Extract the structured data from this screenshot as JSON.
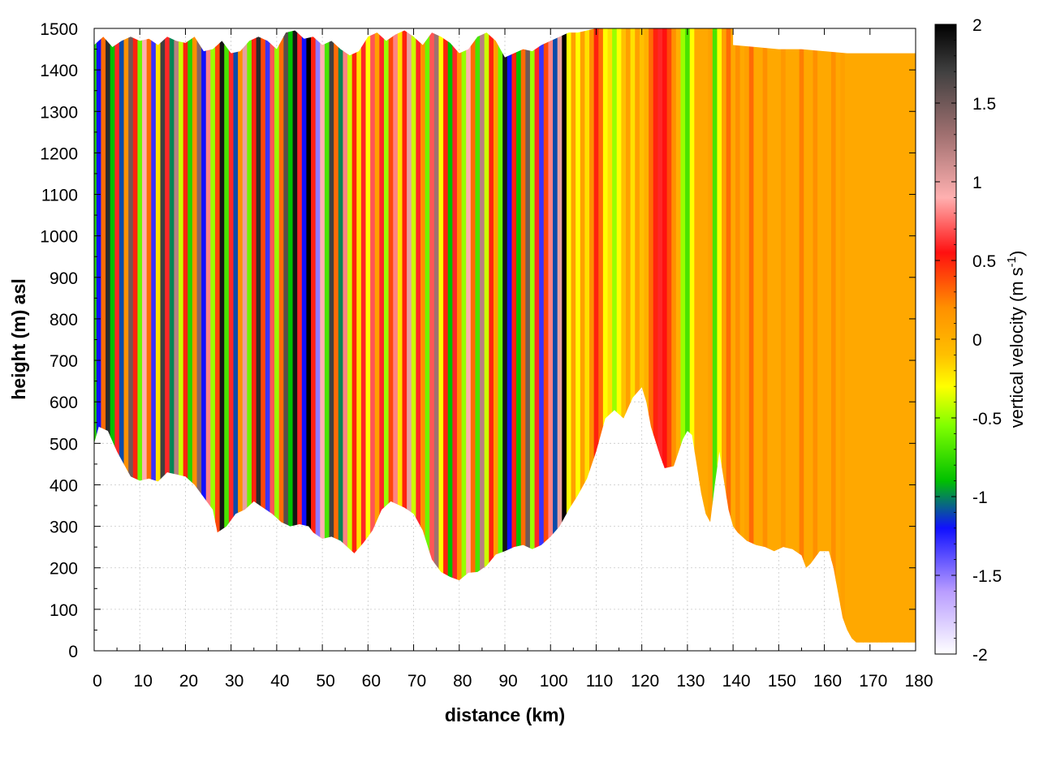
{
  "chart_data": {
    "type": "heatmap",
    "title": "",
    "xlabel": "distance (km)",
    "ylabel": "height (m) asl",
    "xlim": [
      0,
      180
    ],
    "ylim": [
      0,
      1500
    ],
    "x_ticks": [
      0,
      10,
      20,
      30,
      40,
      50,
      60,
      70,
      80,
      90,
      100,
      110,
      120,
      130,
      140,
      150,
      160,
      170,
      180
    ],
    "x_tick_labels": [
      "0",
      "10",
      "20",
      "30",
      "40",
      "50",
      "60",
      "70",
      "80",
      "90",
      "100",
      "110",
      "120",
      "130",
      "140",
      "150",
      "160",
      "170",
      "180"
    ],
    "y_ticks": [
      0,
      100,
      200,
      300,
      400,
      500,
      600,
      700,
      800,
      900,
      1000,
      1100,
      1200,
      1300,
      1400,
      1500
    ],
    "y_tick_labels": [
      "0",
      "100",
      "200",
      "300",
      "400",
      "500",
      "600",
      "700",
      "800",
      "900",
      "1000",
      "1100",
      "1200",
      "1300",
      "1400",
      "1500"
    ],
    "grid": true,
    "colorbar": {
      "label_main": "vertical velocity (m s",
      "label_sup": "-1",
      "label_end": ")",
      "range": [
        -2,
        2
      ],
      "ticks": [
        2,
        1.5,
        1,
        0.5,
        0,
        -0.5,
        -1,
        -1.5,
        -2
      ],
      "tick_labels": [
        "2",
        "1.5",
        "1",
        "0.5",
        "0",
        "-0.5",
        "-1",
        "-1.5",
        "-2"
      ],
      "palette": [
        {
          "v": -2.0,
          "color": "#ffffff"
        },
        {
          "v": -1.6,
          "color": "#b89cff"
        },
        {
          "v": -1.2,
          "color": "#1010ff"
        },
        {
          "v": -0.9,
          "color": "#00c000"
        },
        {
          "v": -0.55,
          "color": "#80ff00"
        },
        {
          "v": -0.3,
          "color": "#ffff00"
        },
        {
          "v": -0.1,
          "color": "#ffc000"
        },
        {
          "v": 0.2,
          "color": "#ff9000"
        },
        {
          "v": 0.55,
          "color": "#ff1010"
        },
        {
          "v": 0.9,
          "color": "#ffb0b0"
        },
        {
          "v": 1.3,
          "color": "#a07070"
        },
        {
          "v": 1.7,
          "color": "#404040"
        },
        {
          "v": 2.0,
          "color": "#000000"
        }
      ]
    },
    "terrain_bottom_m": [
      [
        0,
        500
      ],
      [
        1,
        540
      ],
      [
        3,
        530
      ],
      [
        5,
        480
      ],
      [
        8,
        420
      ],
      [
        10,
        410
      ],
      [
        12,
        415
      ],
      [
        14,
        408
      ],
      [
        16,
        430
      ],
      [
        18,
        425
      ],
      [
        20,
        420
      ],
      [
        22,
        400
      ],
      [
        24,
        370
      ],
      [
        26,
        340
      ],
      [
        27,
        285
      ],
      [
        29,
        300
      ],
      [
        31,
        330
      ],
      [
        33,
        340
      ],
      [
        35,
        360
      ],
      [
        37,
        345
      ],
      [
        39,
        330
      ],
      [
        41,
        310
      ],
      [
        43,
        300
      ],
      [
        45,
        305
      ],
      [
        47,
        300
      ],
      [
        48,
        285
      ],
      [
        50,
        270
      ],
      [
        52,
        275
      ],
      [
        54,
        265
      ],
      [
        56,
        245
      ],
      [
        57,
        235
      ],
      [
        59,
        260
      ],
      [
        61,
        290
      ],
      [
        63,
        340
      ],
      [
        65,
        360
      ],
      [
        67,
        350
      ],
      [
        68,
        345
      ],
      [
        70,
        330
      ],
      [
        72,
        290
      ],
      [
        74,
        220
      ],
      [
        76,
        190
      ],
      [
        78,
        178
      ],
      [
        80,
        170
      ],
      [
        82,
        188
      ],
      [
        84,
        190
      ],
      [
        86,
        205
      ],
      [
        88,
        232
      ],
      [
        90,
        240
      ],
      [
        92,
        250
      ],
      [
        94,
        255
      ],
      [
        96,
        245
      ],
      [
        98,
        255
      ],
      [
        100,
        275
      ],
      [
        102,
        300
      ],
      [
        104,
        340
      ],
      [
        106,
        375
      ],
      [
        108,
        415
      ],
      [
        110,
        480
      ],
      [
        112,
        560
      ],
      [
        114,
        580
      ],
      [
        116,
        560
      ],
      [
        118,
        610
      ],
      [
        120,
        635
      ],
      [
        121,
        600
      ],
      [
        122,
        540
      ],
      [
        124,
        470
      ],
      [
        125,
        440
      ],
      [
        127,
        445
      ],
      [
        129,
        510
      ],
      [
        130,
        530
      ],
      [
        131,
        520
      ],
      [
        132,
        450
      ],
      [
        133,
        380
      ],
      [
        134,
        330
      ],
      [
        135,
        310
      ],
      [
        136,
        400
      ],
      [
        137,
        480
      ],
      [
        138,
        410
      ],
      [
        139,
        340
      ],
      [
        140,
        300
      ],
      [
        141,
        285
      ],
      [
        143,
        265
      ],
      [
        145,
        255
      ],
      [
        147,
        250
      ],
      [
        149,
        240
      ],
      [
        151,
        250
      ],
      [
        153,
        245
      ],
      [
        155,
        230
      ],
      [
        156,
        200
      ],
      [
        157,
        210
      ],
      [
        159,
        240
      ],
      [
        161,
        240
      ],
      [
        162,
        200
      ],
      [
        163,
        140
      ],
      [
        164,
        80
      ],
      [
        165,
        50
      ],
      [
        166,
        30
      ],
      [
        167,
        20
      ],
      [
        170,
        20
      ],
      [
        180,
        20
      ]
    ],
    "terrain_top_m": [
      [
        0,
        1460
      ],
      [
        2,
        1480
      ],
      [
        4,
        1455
      ],
      [
        6,
        1470
      ],
      [
        8,
        1480
      ],
      [
        10,
        1470
      ],
      [
        12,
        1475
      ],
      [
        14,
        1460
      ],
      [
        16,
        1480
      ],
      [
        18,
        1470
      ],
      [
        20,
        1465
      ],
      [
        22,
        1480
      ],
      [
        24,
        1445
      ],
      [
        26,
        1450
      ],
      [
        28,
        1470
      ],
      [
        30,
        1440
      ],
      [
        32,
        1445
      ],
      [
        34,
        1470
      ],
      [
        36,
        1480
      ],
      [
        38,
        1470
      ],
      [
        40,
        1450
      ],
      [
        42,
        1490
      ],
      [
        44,
        1495
      ],
      [
        46,
        1475
      ],
      [
        48,
        1480
      ],
      [
        50,
        1460
      ],
      [
        52,
        1470
      ],
      [
        54,
        1450
      ],
      [
        56,
        1435
      ],
      [
        58,
        1445
      ],
      [
        60,
        1480
      ],
      [
        62,
        1490
      ],
      [
        64,
        1470
      ],
      [
        66,
        1485
      ],
      [
        68,
        1495
      ],
      [
        70,
        1480
      ],
      [
        72,
        1460
      ],
      [
        74,
        1490
      ],
      [
        76,
        1480
      ],
      [
        78,
        1465
      ],
      [
        80,
        1440
      ],
      [
        82,
        1450
      ],
      [
        84,
        1480
      ],
      [
        86,
        1490
      ],
      [
        88,
        1470
      ],
      [
        90,
        1430
      ],
      [
        92,
        1440
      ],
      [
        94,
        1450
      ],
      [
        96,
        1445
      ],
      [
        98,
        1460
      ],
      [
        100,
        1470
      ],
      [
        102,
        1480
      ],
      [
        104,
        1490
      ],
      [
        106,
        1490
      ],
      [
        108,
        1495
      ],
      [
        110,
        1500
      ],
      [
        180,
        1500
      ]
    ],
    "right_region": {
      "x_start": 162,
      "top_m": 1440,
      "top_x": [
        [
          140,
          1460
        ],
        [
          145,
          1455
        ],
        [
          150,
          1450
        ],
        [
          155,
          1450
        ],
        [
          160,
          1445
        ],
        [
          165,
          1440
        ],
        [
          180,
          1440
        ]
      ]
    },
    "columns": [
      [
        0.5,
        -0.8
      ],
      [
        1.0,
        -1.2
      ],
      [
        2.0,
        0.3
      ],
      [
        3.0,
        1.8
      ],
      [
        4.0,
        -0.9
      ],
      [
        5.0,
        0.6
      ],
      [
        6.0,
        -1.1
      ],
      [
        7.0,
        0.2
      ],
      [
        8.0,
        1.5
      ],
      [
        9.0,
        0.5
      ],
      [
        10.0,
        -0.6
      ],
      [
        11.0,
        0.9
      ],
      [
        12.0,
        0.3
      ],
      [
        13.0,
        -1.3
      ],
      [
        14.0,
        -0.2
      ],
      [
        15.0,
        1.7
      ],
      [
        16.0,
        0.6
      ],
      [
        17.0,
        -1.0
      ],
      [
        18.0,
        1.2
      ],
      [
        19.0,
        -0.4
      ],
      [
        20.0,
        0.5
      ],
      [
        21.0,
        -0.8
      ],
      [
        22.0,
        0.2
      ],
      [
        23.0,
        1.4
      ],
      [
        24.0,
        -1.2
      ],
      [
        25.0,
        0.8
      ],
      [
        26.0,
        -0.5
      ],
      [
        27.0,
        0.4
      ],
      [
        28.0,
        1.9
      ],
      [
        29.0,
        -0.7
      ],
      [
        30.0,
        0.6
      ],
      [
        31.0,
        -1.1
      ],
      [
        32.0,
        0.2
      ],
      [
        33.0,
        1.0
      ],
      [
        34.0,
        -0.6
      ],
      [
        35.0,
        0.5
      ],
      [
        36.0,
        1.8
      ],
      [
        37.0,
        0.4
      ],
      [
        38.0,
        -1.3
      ],
      [
        39.0,
        0.7
      ],
      [
        40.0,
        -0.5
      ],
      [
        41.0,
        0.3
      ],
      [
        42.0,
        1.6
      ],
      [
        43.0,
        -0.9
      ],
      [
        44.0,
        1.9
      ],
      [
        45.0,
        0.6
      ],
      [
        46.0,
        -1.2
      ],
      [
        47.0,
        2.0
      ],
      [
        48.0,
        0.5
      ],
      [
        49.0,
        -1.5
      ],
      [
        50.0,
        0.9
      ],
      [
        51.0,
        -0.7
      ],
      [
        52.0,
        1.7
      ],
      [
        53.0,
        0.3
      ],
      [
        54.0,
        -1.0
      ],
      [
        55.0,
        0.8
      ],
      [
        56.0,
        -0.4
      ],
      [
        57.0,
        0.5
      ],
      [
        58.0,
        -0.2
      ],
      [
        59.0,
        0.6
      ],
      [
        60.0,
        -0.3
      ],
      [
        61.0,
        0.7
      ],
      [
        62.0,
        0.1
      ],
      [
        63.0,
        0.6
      ],
      [
        64.0,
        -0.5
      ],
      [
        65.0,
        0.4
      ],
      [
        66.0,
        0.8
      ],
      [
        67.0,
        -0.2
      ],
      [
        68.0,
        0.5
      ],
      [
        69.0,
        1.0
      ],
      [
        70.0,
        -0.4
      ],
      [
        71.0,
        0.6
      ],
      [
        72.0,
        0.2
      ],
      [
        73.0,
        -0.6
      ],
      [
        74.0,
        0.7
      ],
      [
        75.0,
        1.3
      ],
      [
        76.0,
        -0.3
      ],
      [
        77.0,
        0.5
      ],
      [
        78.0,
        -0.9
      ],
      [
        79.0,
        0.6
      ],
      [
        80.0,
        0.2
      ],
      [
        81.0,
        -0.5
      ],
      [
        82.0,
        0.9
      ],
      [
        83.0,
        0.3
      ],
      [
        84.0,
        -0.7
      ],
      [
        85.0,
        1.2
      ],
      [
        86.0,
        -0.4
      ],
      [
        87.0,
        0.5
      ],
      [
        88.0,
        0.1
      ],
      [
        89.0,
        -0.6
      ],
      [
        90.0,
        1.9
      ],
      [
        91.0,
        -1.2
      ],
      [
        92.0,
        0.5
      ],
      [
        93.0,
        -0.9
      ],
      [
        94.0,
        0.3
      ],
      [
        95.0,
        1.5
      ],
      [
        96.0,
        -0.5
      ],
      [
        97.0,
        0.6
      ],
      [
        98.0,
        -1.3
      ],
      [
        99.0,
        0.4
      ],
      [
        100.0,
        0.8
      ],
      [
        101.0,
        -1.1
      ],
      [
        102.0,
        1.0
      ],
      [
        103.0,
        2.0
      ],
      [
        104.0,
        -0.3
      ],
      [
        105.0,
        0.1
      ],
      [
        106.0,
        -0.3
      ],
      [
        107.0,
        0.1
      ],
      [
        108.0,
        -0.2
      ],
      [
        109.0,
        0.2
      ],
      [
        110.0,
        0.5
      ],
      [
        111.0,
        0.3
      ],
      [
        112.0,
        -0.3
      ],
      [
        113.0,
        -0.2
      ],
      [
        114.0,
        -0.5
      ],
      [
        115.0,
        -0.3
      ],
      [
        116.0,
        -0.1
      ],
      [
        117.0,
        0.1
      ],
      [
        118.0,
        -0.2
      ],
      [
        119.0,
        0.1
      ],
      [
        120.0,
        -0.1
      ],
      [
        121.0,
        0.0
      ],
      [
        122.0,
        0.3
      ],
      [
        123.0,
        0.5
      ],
      [
        124.0,
        0.6
      ],
      [
        125.0,
        0.55
      ],
      [
        126.0,
        0.4
      ],
      [
        127.0,
        0.2
      ],
      [
        128.0,
        0.0
      ],
      [
        129.0,
        -0.5
      ],
      [
        130.0,
        -0.7
      ],
      [
        131.0,
        -0.3
      ],
      [
        132.0,
        0.05
      ],
      [
        133.0,
        0.05
      ],
      [
        134.0,
        0.05
      ],
      [
        135.0,
        0.1
      ],
      [
        136.0,
        -0.7
      ],
      [
        137.0,
        -0.3
      ],
      [
        138.0,
        0.1
      ],
      [
        139.0,
        0.3
      ],
      [
        140.0,
        0.05
      ],
      [
        141.0,
        0.2
      ],
      [
        142.0,
        0.05
      ],
      [
        143.0,
        0.1
      ],
      [
        144.0,
        0.3
      ],
      [
        145.0,
        0.05
      ],
      [
        146.0,
        0.05
      ],
      [
        147.0,
        0.2
      ],
      [
        148.0,
        0.05
      ],
      [
        149.0,
        0.05
      ],
      [
        150.0,
        0.05
      ],
      [
        151.0,
        0.15
      ],
      [
        152.0,
        0.05
      ],
      [
        153.0,
        0.05
      ],
      [
        154.0,
        0.05
      ],
      [
        155.0,
        0.25
      ],
      [
        156.0,
        0.05
      ],
      [
        157.0,
        0.05
      ],
      [
        158.0,
        0.2
      ],
      [
        159.0,
        0.05
      ],
      [
        160.0,
        0.05
      ],
      [
        161.0,
        0.05
      ],
      [
        162.0,
        0.2
      ],
      [
        163.0,
        0.05
      ],
      [
        164.0,
        0.1
      ],
      [
        165.0,
        0.05
      ],
      [
        166.0,
        0.05
      ],
      [
        167.0,
        0.05
      ],
      [
        168.0,
        0.05
      ],
      [
        169.0,
        0.05
      ],
      [
        170.0,
        0.05
      ],
      [
        171.0,
        0.05
      ],
      [
        172.0,
        0.05
      ],
      [
        173.0,
        0.05
      ],
      [
        174.0,
        0.05
      ],
      [
        175.0,
        0.05
      ],
      [
        176.0,
        0.05
      ],
      [
        177.0,
        0.05
      ],
      [
        178.0,
        0.05
      ],
      [
        179.0,
        0.05
      ],
      [
        180.0,
        0.05
      ]
    ]
  }
}
